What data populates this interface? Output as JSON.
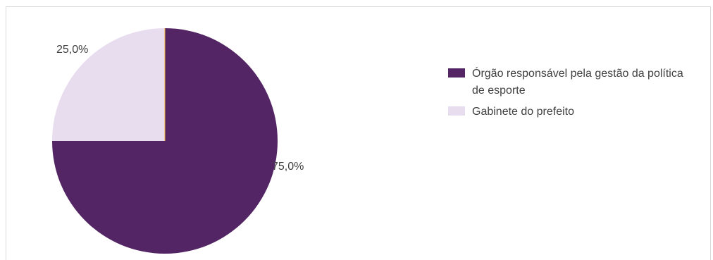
{
  "chart_data": {
    "type": "pie",
    "title": "",
    "slices": [
      {
        "label": "Órgão responsável pela gestão da política de esporte",
        "value": 75.0,
        "display": "75,0%",
        "color": "#532565"
      },
      {
        "label": "Gabinete do prefeito",
        "value": 25.0,
        "display": "25,0%",
        "color": "#e8dcef"
      }
    ],
    "start_angle_deg": 0,
    "direction": "clockwise",
    "legend_position": "right",
    "divider_color": "#f2b134"
  }
}
